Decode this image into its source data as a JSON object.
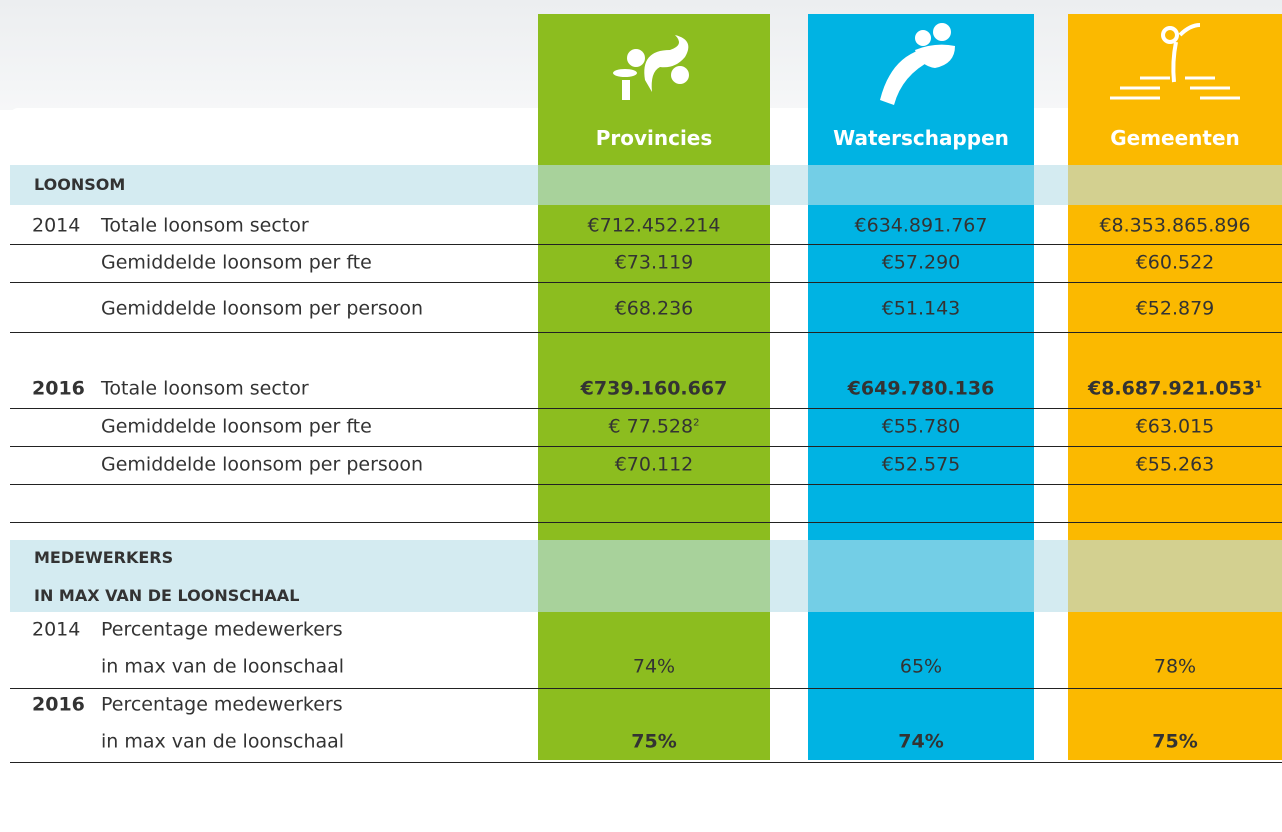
{
  "columns": [
    "Provincies",
    "Waterschappen",
    "Gemeenten"
  ],
  "sections": [
    {
      "title_lines": [
        "LOONSOM"
      ],
      "rows": [
        {
          "year": "2014",
          "label_lines": [
            "Totale loonsom sector"
          ],
          "values": [
            "€712.452.214",
            "€634.891.767",
            "€8.353.865.896"
          ]
        },
        {
          "label_lines": [
            "Gemiddelde loonsom per fte"
          ],
          "values": [
            "€73.119",
            "€57.290",
            "€60.522"
          ]
        },
        {
          "label_lines": [
            "Gemiddelde loonsom per persoon"
          ],
          "values": [
            "€68.236",
            "€51.143",
            "€52.879"
          ]
        },
        {
          "year": "2016",
          "label_lines": [
            "Totale loonsom sector"
          ],
          "values": [
            "€739.160.667",
            "€649.780.136",
            {
              "text": "€8.687.921.053",
              "note": "1"
            }
          ]
        },
        {
          "label_lines": [
            "Gemiddelde loonsom per fte"
          ],
          "values": [
            {
              "text": "€ 77.528",
              "note": "2"
            },
            "€55.780",
            "€63.015"
          ]
        },
        {
          "label_lines": [
            "Gemiddelde loonsom per persoon"
          ],
          "values": [
            "€70.112",
            "€52.575",
            "€55.263"
          ]
        }
      ]
    },
    {
      "title_lines": [
        "MEDEWERKERS",
        "IN MAX VAN DE LOONSCHAAL"
      ],
      "rows": [
        {
          "year": "2014",
          "label_lines": [
            "Percentage medewerkers",
            "in max van de loonschaal"
          ],
          "values": [
            "74%",
            "65%",
            "78%"
          ]
        },
        {
          "year": "2016",
          "label_lines": [
            "Percentage medewerkers",
            "in max van de loonschaal"
          ],
          "values": [
            "75%",
            "74%",
            "75%"
          ]
        }
      ]
    }
  ]
}
